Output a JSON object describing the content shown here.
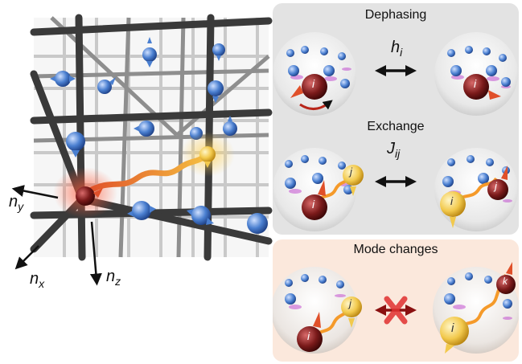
{
  "axes": {
    "ny": {
      "base": "n",
      "sub": "y"
    },
    "nx": {
      "base": "n",
      "sub": "x"
    },
    "nz": {
      "base": "n",
      "sub": "z"
    }
  },
  "panels": {
    "dephasing": {
      "title": "Dephasing",
      "coupling": {
        "base": "h",
        "sub": "i"
      }
    },
    "exchange": {
      "title": "Exchange",
      "coupling": {
        "base": "J",
        "sub": "ij"
      }
    },
    "mode_changes": {
      "title": "Mode changes"
    }
  },
  "spin_labels": {
    "i": "i",
    "j": "j",
    "k": "k"
  },
  "colors": {
    "panel_gray": "#e3e3e3",
    "panel_peach": "#fbe8dc",
    "spin_blue": "#4a7fd0",
    "spin_red": "#7a1a1a",
    "spin_yellow": "#f2c94c",
    "path_orange": "#f59a2a",
    "cross_red": "#e03030"
  }
}
